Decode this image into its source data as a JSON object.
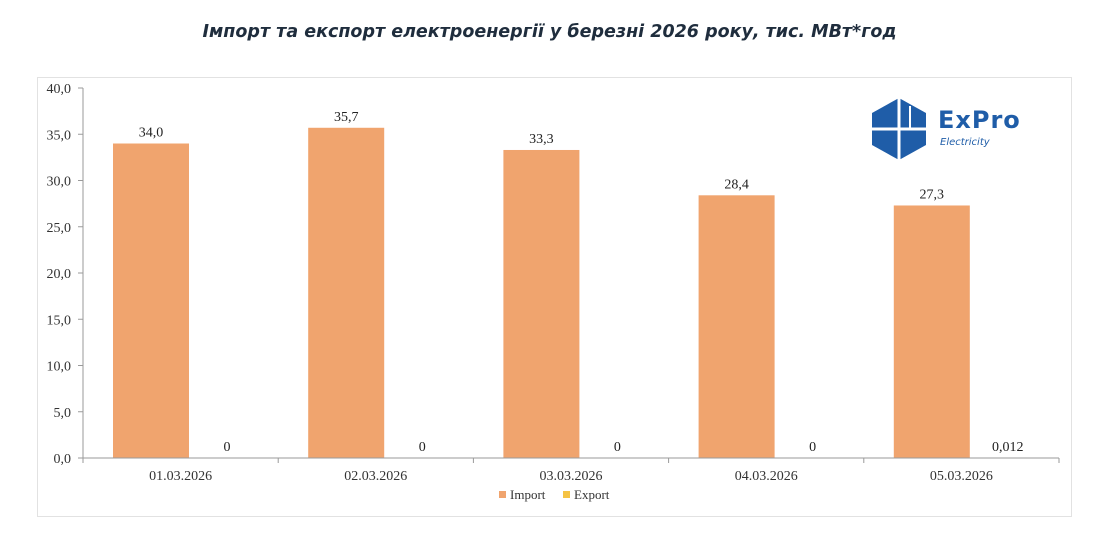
{
  "chart_data": {
    "type": "bar",
    "title": "Імпорт та експорт електроенергії у березні 2026 року, тис. МВт*год",
    "categories": [
      "01.03.2026",
      "02.03.2026",
      "03.03.2026",
      "04.03.2026",
      "05.03.2026"
    ],
    "series": [
      {
        "name": "Import",
        "color": "#f0a46e",
        "values": [
          34.0,
          35.7,
          33.3,
          28.4,
          27.3
        ],
        "labels": [
          "34,0",
          "35,7",
          "33,3",
          "28,4",
          "27,3"
        ]
      },
      {
        "name": "Export",
        "color": "#f5c344",
        "values": [
          0,
          0,
          0,
          0,
          0.012
        ],
        "labels": [
          "0",
          "0",
          "0",
          "0",
          "0,012"
        ]
      }
    ],
    "ylim": [
      0,
      40
    ],
    "yticks": [
      "0,0",
      "5,0",
      "10,0",
      "15,0",
      "20,0",
      "25,0",
      "30,0",
      "35,0",
      "40,0"
    ],
    "xlabel": "",
    "ylabel": "",
    "legend": "bottom-center"
  },
  "logo": {
    "word": "ExPro",
    "sub": "Electricity",
    "color": "#1f5da8"
  }
}
